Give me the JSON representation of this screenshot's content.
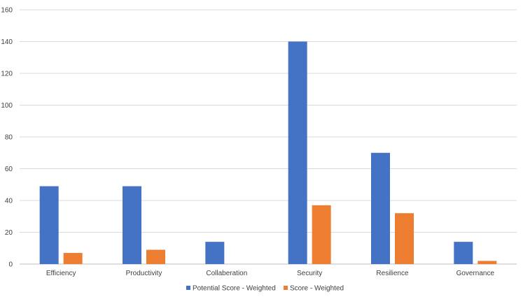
{
  "chart_data": {
    "type": "bar",
    "title": "",
    "xlabel": "",
    "ylabel": "",
    "categories": [
      "Efficiency",
      "Productivity",
      "Collaberation",
      "Security",
      "Resilience",
      "Governance"
    ],
    "series": [
      {
        "name": "Potential Score - Weighted",
        "color": "#4472C4",
        "values": [
          49,
          49,
          14,
          140,
          70,
          14
        ]
      },
      {
        "name": "Score - Weighted",
        "color": "#ED7D31",
        "values": [
          7,
          9,
          0,
          37,
          32,
          2
        ]
      }
    ],
    "ylim": [
      0,
      160
    ],
    "yticks": [
      0,
      20,
      40,
      60,
      80,
      100,
      120,
      140,
      160
    ],
    "grid": true,
    "legend_position": "bottom"
  }
}
